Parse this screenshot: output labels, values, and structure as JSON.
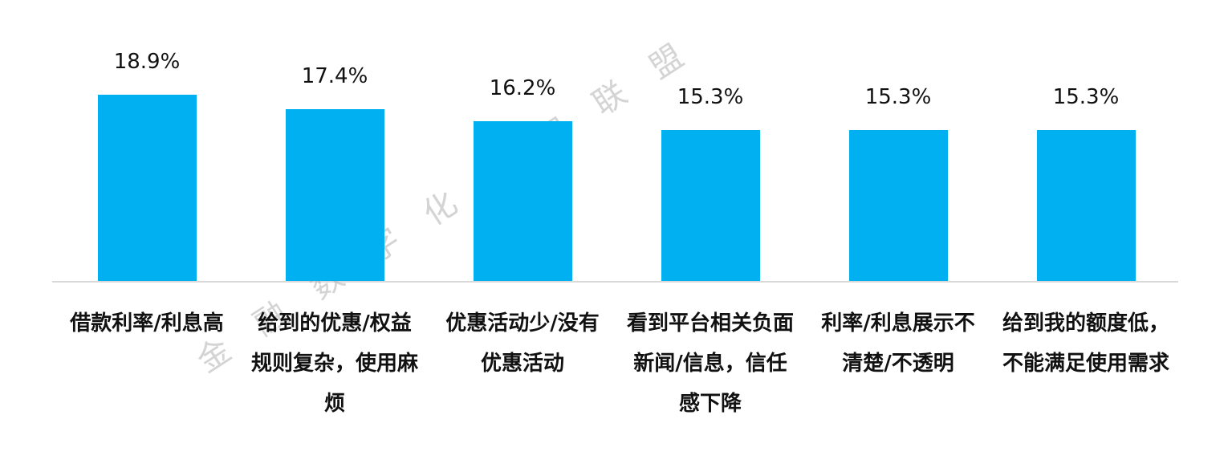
{
  "chart_data": {
    "type": "bar",
    "categories": [
      "借款利率/利息高",
      "给到的优惠/权益规则复杂，使用麻烦",
      "优惠活动少/没有优惠活动",
      "看到平台相关负面新闻/信息，信任感下降",
      "利率/利息展示不清楚/不透明",
      "给到我的额度低，不能满足使用需求"
    ],
    "values": [
      18.9,
      17.4,
      16.2,
      15.3,
      15.3,
      15.3
    ],
    "value_labels": [
      "18.9%",
      "17.4%",
      "16.2%",
      "15.3%",
      "15.3%",
      "15.3%"
    ],
    "color": "#00b0f0",
    "watermark": "金融数字化发展联盟"
  }
}
